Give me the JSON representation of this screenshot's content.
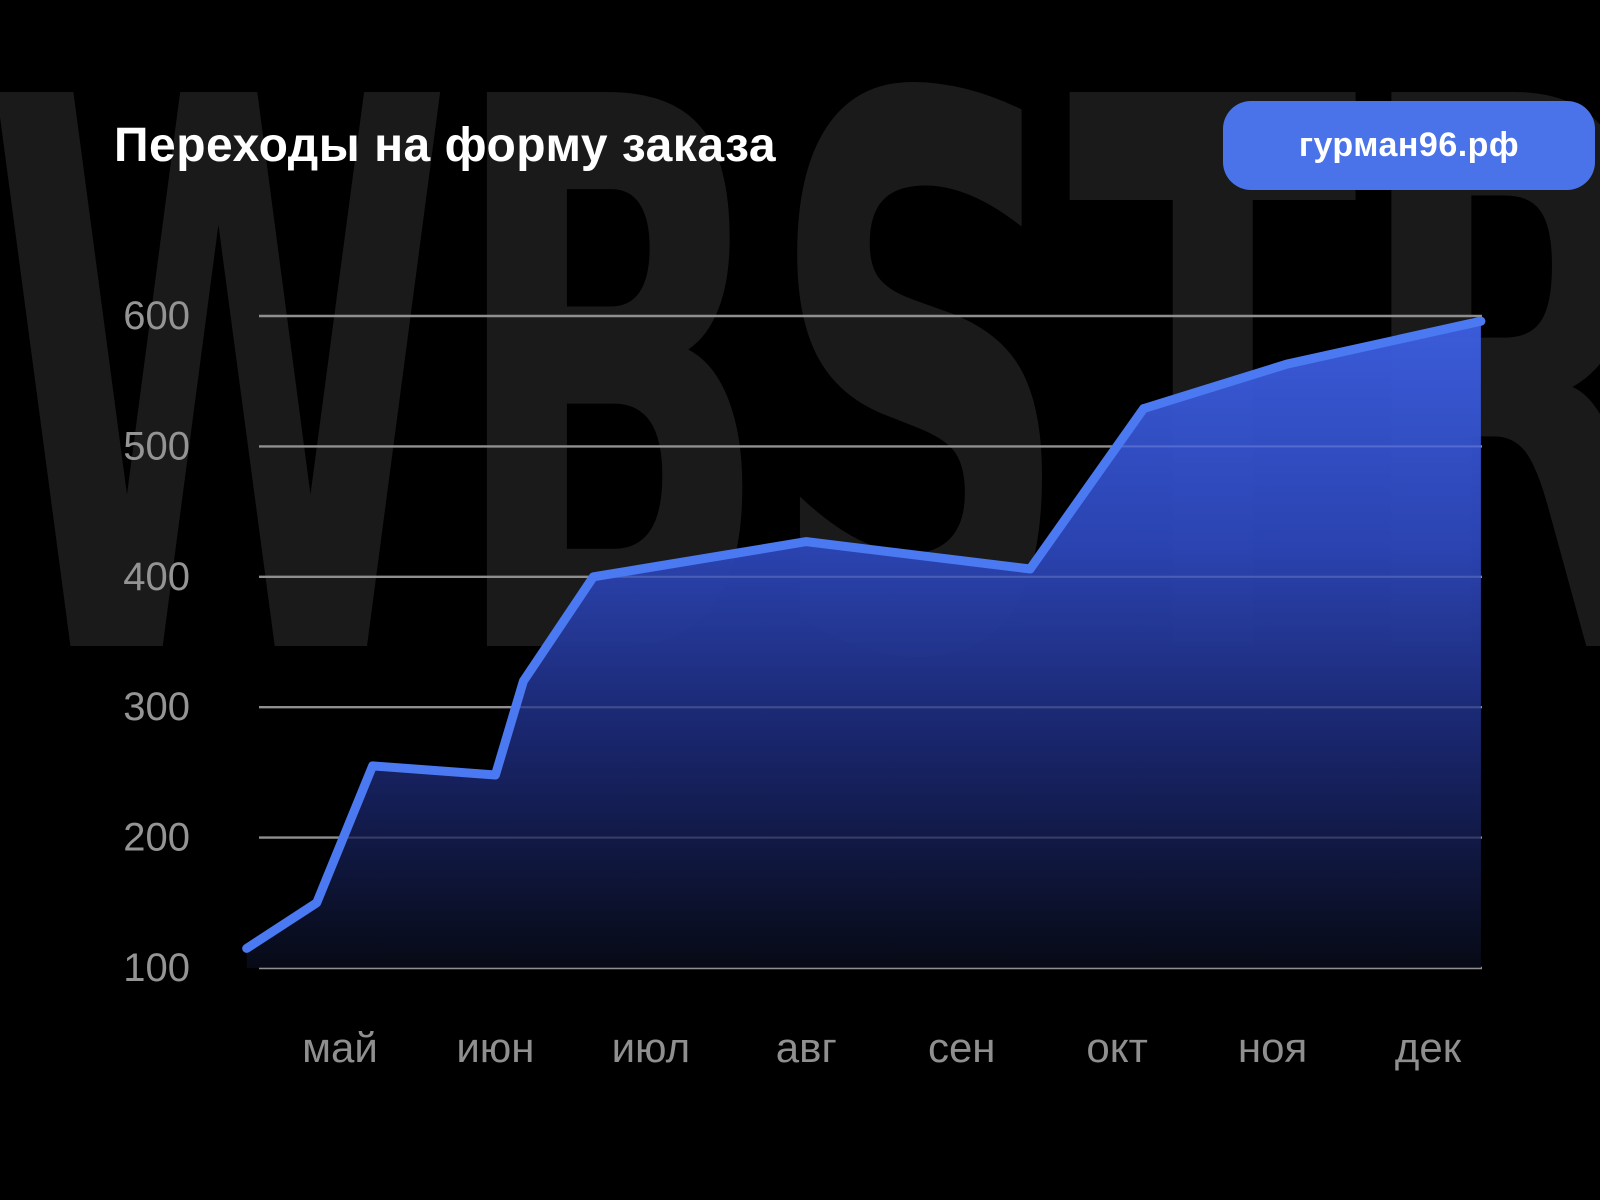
{
  "watermark": "WBSTR",
  "header": {
    "title": "Переходы на форму заказа",
    "badge": "гурман96.рф"
  },
  "colors": {
    "background": "#000000",
    "watermark_text": "#1a1a1a",
    "title_text": "#ffffff",
    "badge_background": "#4a73e9",
    "badge_text": "#ffffff",
    "line": "#4b79f2",
    "area_top": "#3d5fe2",
    "area_upper_mid": "#2c46b8",
    "area_lower_mid": "#1a2770",
    "area_bottom": "#070a16",
    "grid": "#8f8f8f",
    "grid_over_area": "rgba(255,255,255,0.14)",
    "y_tick_text": "#949494",
    "x_tick_text": "#8f8f8f"
  },
  "chart_data": {
    "type": "area",
    "title": "Переходы на форму заказа",
    "xlabel": "",
    "ylabel": "",
    "categories": [
      "май",
      "июн",
      "июл",
      "авг",
      "сен",
      "окт",
      "ноя",
      "дек"
    ],
    "y_ticks": [
      600,
      500,
      400,
      300,
      200,
      100
    ],
    "ylim": [
      100,
      620
    ],
    "xlim_month_units": [
      0.4,
      8.34
    ],
    "grid": "horizontal",
    "legend": "none",
    "series": [
      {
        "name": "переходы",
        "points": [
          {
            "month_position": 0.4,
            "value": 115
          },
          {
            "month_position": 0.85,
            "value": 150
          },
          {
            "month_position": 1.21,
            "value": 255
          },
          {
            "month_position": 2.0,
            "value": 248
          },
          {
            "month_position": 2.18,
            "value": 320
          },
          {
            "month_position": 2.63,
            "value": 400
          },
          {
            "month_position": 4.0,
            "value": 427
          },
          {
            "month_position": 5.44,
            "value": 406
          },
          {
            "month_position": 6.17,
            "value": 529
          },
          {
            "month_position": 7.09,
            "value": 563
          },
          {
            "month_position": 8.34,
            "value": 596
          }
        ]
      }
    ]
  }
}
